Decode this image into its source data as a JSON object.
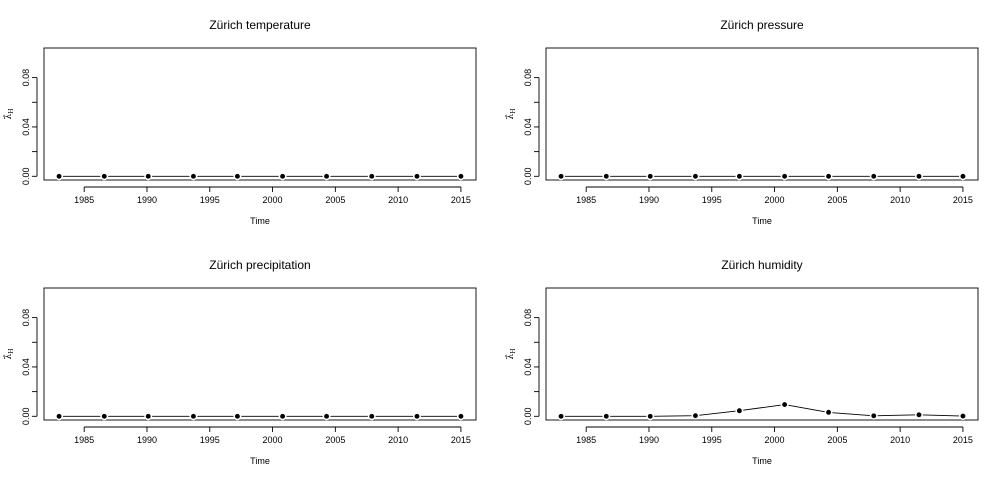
{
  "chart_data": [
    {
      "type": "line",
      "title": "Zürich temperature",
      "xlabel": "Time",
      "ylabel": "λ̂_H",
      "xlim": [
        1981.8,
        2016.2
      ],
      "ylim": [
        -0.003,
        0.104
      ],
      "xticks": [
        "1985",
        "1990",
        "1995",
        "2000",
        "2005",
        "2010",
        "2015"
      ],
      "yticks": [
        "0.00",
        "0.04",
        "0.08"
      ],
      "x": [
        1983.0,
        1986.6,
        1990.1,
        1993.7,
        1997.2,
        2000.8,
        2004.3,
        2007.9,
        2011.5,
        2015.0
      ],
      "y": [
        0,
        0,
        0,
        0,
        0,
        0,
        0,
        0,
        0,
        0
      ]
    },
    {
      "type": "line",
      "title": "Zürich pressure",
      "xlabel": "Time",
      "ylabel": "λ̂_H",
      "xlim": [
        1981.8,
        2016.2
      ],
      "ylim": [
        -0.003,
        0.104
      ],
      "xticks": [
        "1985",
        "1990",
        "1995",
        "2000",
        "2005",
        "2010",
        "2015"
      ],
      "yticks": [
        "0.00",
        "0.04",
        "0.08"
      ],
      "x": [
        1983.0,
        1986.6,
        1990.1,
        1993.7,
        1997.2,
        2000.8,
        2004.3,
        2007.9,
        2011.5,
        2015.0
      ],
      "y": [
        0,
        0,
        0,
        0,
        0,
        0,
        0,
        0,
        0,
        0
      ]
    },
    {
      "type": "line",
      "title": "Zürich precipitation",
      "xlabel": "Time",
      "ylabel": "λ̂_H",
      "xlim": [
        1981.8,
        2016.2
      ],
      "ylim": [
        -0.003,
        0.104
      ],
      "xticks": [
        "1985",
        "1990",
        "1995",
        "2000",
        "2005",
        "2010",
        "2015"
      ],
      "yticks": [
        "0.00",
        "0.04",
        "0.08"
      ],
      "x": [
        1983.0,
        1986.6,
        1990.1,
        1993.7,
        1997.2,
        2000.8,
        2004.3,
        2007.9,
        2011.5,
        2015.0
      ],
      "y": [
        0,
        0,
        0,
        0,
        0,
        0,
        0,
        0,
        0,
        0
      ]
    },
    {
      "type": "line",
      "title": "Zürich humidity",
      "xlabel": "Time",
      "ylabel": "λ̂_H",
      "xlim": [
        1981.8,
        2016.2
      ],
      "ylim": [
        -0.003,
        0.104
      ],
      "xticks": [
        "1985",
        "1990",
        "1995",
        "2000",
        "2005",
        "2010",
        "2015"
      ],
      "yticks": [
        "0.00",
        "0.04",
        "0.08"
      ],
      "x": [
        1983.0,
        1986.6,
        1990.1,
        1993.7,
        1997.2,
        2000.8,
        2004.3,
        2007.9,
        2011.5,
        2015.0
      ],
      "y": [
        0.0,
        0.0,
        0.0,
        0.0005,
        0.0045,
        0.0095,
        0.0032,
        0.0004,
        0.0012,
        0.0002
      ]
    }
  ]
}
